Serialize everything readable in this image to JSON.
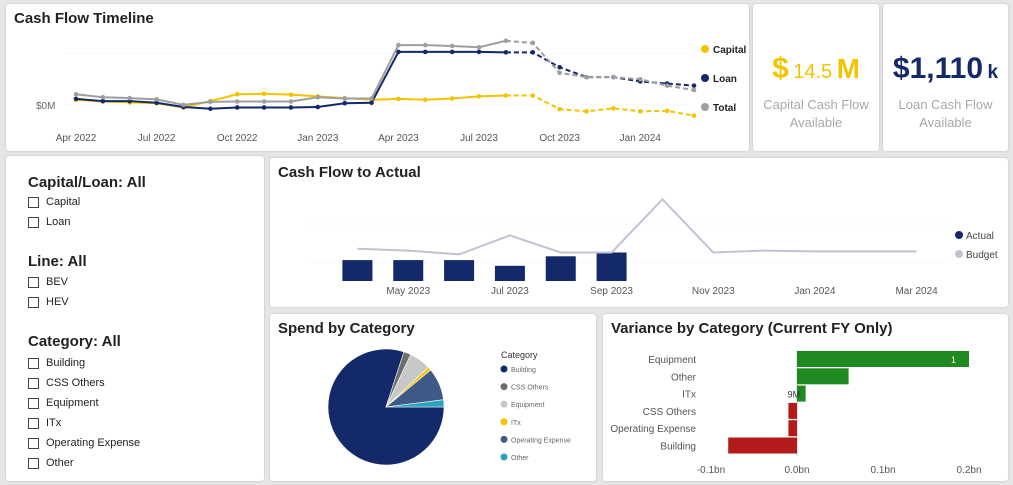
{
  "timeline": {
    "title": "Cash Flow Timeline",
    "y_label": "$0M",
    "x_ticks": [
      "Apr 2022",
      "Jul 2022",
      "Oct 2022",
      "Jan 2023",
      "Apr 2023",
      "Jul 2023",
      "Oct 2023",
      "Jan 2024"
    ],
    "legend": [
      {
        "name": "Capital",
        "color": "#f2c500"
      },
      {
        "name": "Loan",
        "color": "#13296a"
      },
      {
        "name": "Total",
        "color": "#9e9e9e"
      }
    ]
  },
  "kpi_capital": {
    "symbol": "$",
    "number": "14.5",
    "unit": "M",
    "label_line1": "Capital Cash Flow",
    "label_line2": "Available",
    "color": "#f2c500"
  },
  "kpi_loan": {
    "number": "$1,110",
    "unit": "k",
    "label_line1": "Loan Cash Flow",
    "label_line2": "Available",
    "color": "#13296a"
  },
  "slicers": [
    {
      "title": "Capital/Loan: All",
      "options": [
        "Capital",
        "Loan"
      ]
    },
    {
      "title": "Line: All",
      "options": [
        "BEV",
        "HEV"
      ]
    },
    {
      "title": "Category: All",
      "options": [
        "Building",
        "CSS Others",
        "Equipment",
        "ITx",
        "Operating Expense",
        "Other"
      ]
    }
  ],
  "chart_data": [
    {
      "type": "line",
      "title": "Cash Flow Timeline",
      "x": [
        "Apr 2022",
        "May 2022",
        "Jun 2022",
        "Jul 2022",
        "Aug 2022",
        "Sep 2022",
        "Oct 2022",
        "Nov 2022",
        "Dec 2022",
        "Jan 2023",
        "Feb 2023",
        "Mar 2023",
        "Apr 2023",
        "May 2023",
        "Jun 2023",
        "Jul 2023",
        "Aug 2023",
        "Sep 2023",
        "Oct 2023",
        "Nov 2023",
        "Dec 2023",
        "Jan 2024",
        "Feb 2024",
        "Mar 2024"
      ],
      "forecast_from": "Aug 2023",
      "series": [
        {
          "name": "Capital",
          "color": "#f2c500",
          "values": [
            1.2,
            0.8,
            0.6,
            0.4,
            -0.6,
            0.9,
            2.5,
            2.6,
            2.4,
            2.0,
            1.6,
            1.2,
            1.4,
            1.2,
            1.5,
            2.0,
            2.2,
            2.2,
            -1.0,
            -1.5,
            -0.8,
            -1.5,
            -1.4,
            -2.5
          ]
        },
        {
          "name": "Loan",
          "color": "#13296a",
          "values": [
            1.4,
            0.9,
            0.9,
            0.5,
            -0.5,
            -0.9,
            -0.6,
            -0.6,
            -0.6,
            -0.5,
            0.4,
            0.5,
            12.4,
            12.4,
            12.4,
            12.4,
            12.3,
            12.3,
            8.8,
            6.5,
            6.5,
            5.5,
            5.0,
            4.5
          ]
        },
        {
          "name": "Total",
          "color": "#9e9e9e",
          "values": [
            2.5,
            1.8,
            1.6,
            1.3,
            0.0,
            0.7,
            0.8,
            0.8,
            0.8,
            1.8,
            1.5,
            1.5,
            14.0,
            14.0,
            13.8,
            13.5,
            15.0,
            14.5,
            7.5,
            6.5,
            6.5,
            6.0,
            4.5,
            3.5
          ]
        }
      ],
      "ylabel": "$0M",
      "ylim": [
        -4,
        18
      ],
      "legend": "right"
    },
    {
      "type": "bar+line",
      "title": "Cash Flow to Actual",
      "x": [
        "Apr 2023",
        "May 2023",
        "Jun 2023",
        "Jul 2023",
        "Aug 2023",
        "Sep 2023",
        "Oct 2023",
        "Nov 2023",
        "Dec 2023",
        "Jan 2024",
        "Feb 2024",
        "Mar 2024"
      ],
      "x_ticks": [
        "May 2023",
        "Jul 2023",
        "Sep 2023",
        "Nov 2023",
        "Jan 2024",
        "Mar 2024"
      ],
      "series": [
        {
          "name": "Actual",
          "color": "#13296a",
          "values": [
            5.5,
            5.5,
            5.5,
            4.0,
            6.5,
            7.5,
            null,
            null,
            null,
            null,
            null,
            null
          ]
        },
        {
          "name": "Budget",
          "color": "#bfc3d4",
          "values": [
            8.5,
            8.0,
            7.0,
            12.0,
            7.5,
            7.5,
            21.5,
            7.5,
            8.0,
            7.8,
            7.8,
            7.8
          ]
        }
      ],
      "ylim": [
        0,
        25
      ],
      "legend": "right"
    },
    {
      "type": "pie",
      "title": "Spend by Category",
      "legend_title": "Category",
      "legend": "right",
      "slices": [
        {
          "label": "Building",
          "color": "#13296a",
          "value": 80
        },
        {
          "label": "CSS Others",
          "color": "#6d6d6d",
          "value": 2
        },
        {
          "label": "Equipment",
          "color": "#c8c8c8",
          "value": 6
        },
        {
          "label": "ITx",
          "color": "#f2c500",
          "value": 1
        },
        {
          "label": "Operating Expense",
          "color": "#3f5a86",
          "value": 9
        },
        {
          "label": "Other",
          "color": "#2aa3c0",
          "value": 2
        }
      ]
    },
    {
      "type": "bar",
      "orientation": "horizontal",
      "title": "Variance by Category (Current FY Only)",
      "categories": [
        "Equipment",
        "Other",
        "ITx",
        "CSS Others",
        "Operating Expense",
        "Building"
      ],
      "values": [
        0.2,
        0.06,
        0.01,
        -0.01,
        -0.01,
        -0.08
      ],
      "colors": [
        "#1f8a1f",
        "#1f8a1f",
        "#1f8a1f",
        "#b31b1b",
        "#b31b1b",
        "#b31b1b"
      ],
      "x_ticks": [
        "-0.1bn",
        "0.0bn",
        "0.1bn",
        "0.2bn"
      ],
      "xlim": [
        -0.1,
        0.2
      ],
      "data_labels": {
        "Equipment": "1",
        "ITx": "9M"
      }
    }
  ],
  "cash_actual": {
    "title": "Cash Flow to Actual",
    "legend": [
      {
        "name": "Actual",
        "color": "#13296a"
      },
      {
        "name": "Budget",
        "color": "#bfc3d4"
      }
    ]
  },
  "spend": {
    "title": "Spend by Category",
    "legend_title": "Category"
  },
  "variance": {
    "title": "Variance by Category (Current FY Only)"
  }
}
